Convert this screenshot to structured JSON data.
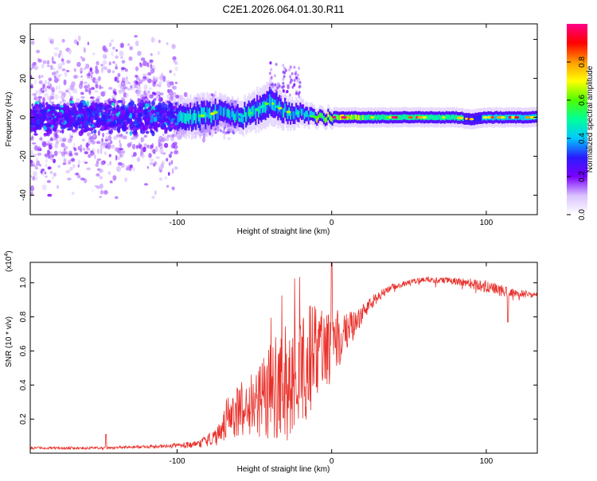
{
  "title": "C2E1.2026.064.01.30.R11",
  "colors": {
    "axis": "#000000",
    "snr_line": "#e8302a",
    "spectrogram_background": "#ffffff"
  },
  "chart_data": [
    {
      "type": "heatmap",
      "name": "spectrogram",
      "xlabel": "Height of straight line (km)",
      "ylabel": "Frequency (Hz)",
      "xlim": [
        -195,
        133
      ],
      "ylim": [
        -50,
        48
      ],
      "xticks": [
        -100,
        0,
        100
      ],
      "xtick_labels": [
        "-100",
        "0",
        "100"
      ],
      "yticks": [
        -40,
        -20,
        0,
        20,
        40
      ],
      "ytick_labels": [
        "-40",
        "-20",
        "0",
        "20",
        "40"
      ],
      "colorbar": {
        "label": "Normalized spectral amplitude",
        "range": [
          0,
          1
        ],
        "ticks": [
          0.0,
          0.2,
          0.4,
          0.6,
          0.8
        ],
        "tick_labels": [
          "0.0",
          "0.2",
          "0.4",
          "0.6",
          "0.8"
        ],
        "colormap": [
          "#ffffff",
          "#d9c2ff",
          "#7a00ff",
          "#2a1bff",
          "#00c8ff",
          "#00ff9a",
          "#4dff00",
          "#ffff00",
          "#ff9a00",
          "#ff0000",
          "#ff0088"
        ]
      },
      "features": {
        "noise_region_x": [
          -195,
          -100
        ],
        "noise_spread_hz": 45,
        "ridge_center_x": [
          -100,
          -80,
          -70,
          -60,
          -50,
          -40,
          -30,
          -20,
          -10,
          0,
          20,
          40,
          60,
          80,
          90,
          100,
          133
        ],
        "ridge_center_hz": [
          0,
          1,
          4,
          0,
          3,
          8,
          3,
          2,
          0,
          0,
          0,
          0,
          0,
          0,
          -1,
          0,
          0
        ],
        "ridge_halfwidth_hz": [
          6,
          6,
          5,
          5,
          6,
          7,
          5,
          4,
          3,
          3,
          3,
          3,
          3,
          3,
          3,
          3,
          3
        ],
        "burst_x": [
          -40,
          -20
        ],
        "burst_hz": [
          10,
          30
        ]
      }
    },
    {
      "type": "line",
      "name": "snr",
      "xlabel": "Height of straight line (km)",
      "ylabel": "SNR (10 * v/v)",
      "scale_label_prefix": "(x10",
      "scale_label_exponent": "4",
      "scale_label_suffix": ")",
      "xlim": [
        -195,
        133
      ],
      "ylim": [
        0,
        1.12
      ],
      "xticks": [
        -100,
        0,
        100
      ],
      "xtick_labels": [
        "-100",
        "0",
        "100"
      ],
      "yticks": [
        0.2,
        0.4,
        0.6,
        0.8,
        1.0
      ],
      "ytick_labels": [
        "0.2",
        "0.4",
        "0.6",
        "0.8",
        "1.0"
      ],
      "envelope": {
        "x": [
          -195,
          -150,
          -110,
          -90,
          -75,
          -68,
          -60,
          -50,
          -40,
          -30,
          -20,
          -10,
          0,
          10,
          20,
          30,
          40,
          60,
          80,
          100,
          115,
          133
        ],
        "y": [
          0.03,
          0.03,
          0.04,
          0.05,
          0.09,
          0.2,
          0.25,
          0.3,
          0.35,
          0.4,
          0.5,
          0.58,
          0.62,
          0.7,
          0.82,
          0.92,
          0.98,
          1.02,
          1.01,
          0.98,
          0.94,
          0.93
        ],
        "noise_amplitude": [
          0.008,
          0.008,
          0.01,
          0.02,
          0.05,
          0.12,
          0.15,
          0.2,
          0.3,
          0.35,
          0.35,
          0.3,
          0.2,
          0.12,
          0.06,
          0.03,
          0.02,
          0.015,
          0.02,
          0.04,
          0.03,
          0.015
        ]
      },
      "annotations": [
        {
          "x": -146,
          "y": 0.11,
          "note": "small spike"
        },
        {
          "x": 0,
          "y": 1.12,
          "note": "peak"
        },
        {
          "x": 114,
          "y": 0.77,
          "note": "dip"
        }
      ]
    }
  ]
}
